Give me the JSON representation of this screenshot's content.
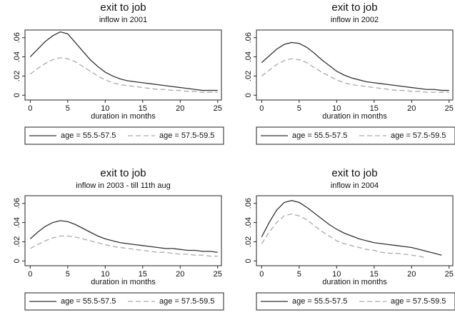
{
  "chart_data": [
    {
      "type": "line",
      "title": "exit to job",
      "subtitle": "inflow in 2001",
      "x_label": "duration in months",
      "x": [
        0,
        1,
        2,
        3,
        4,
        5,
        6,
        7,
        8,
        9,
        10,
        11,
        12,
        13,
        14,
        15,
        16,
        17,
        18,
        19,
        20,
        21,
        22,
        23,
        24,
        25
      ],
      "series": [
        {
          "name": "age = 55.5-57.5",
          "color": "#333333",
          "line_style": "solid",
          "values": [
            0.04,
            0.048,
            0.056,
            0.062,
            0.066,
            0.064,
            0.055,
            0.046,
            0.037,
            0.03,
            0.024,
            0.02,
            0.017,
            0.015,
            0.014,
            0.013,
            0.012,
            0.011,
            0.01,
            0.009,
            0.008,
            0.007,
            0.006,
            0.005,
            0.005,
            0.005
          ]
        },
        {
          "name": "age = 57.5-59.5",
          "color": "#aaaaaa",
          "line_style": "dashed",
          "values": [
            0.022,
            0.028,
            0.033,
            0.037,
            0.039,
            0.038,
            0.035,
            0.03,
            0.025,
            0.02,
            0.016,
            0.013,
            0.011,
            0.01,
            0.009,
            0.008,
            0.007,
            0.006,
            0.006,
            0.005,
            0.005,
            0.004,
            0.004,
            0.003,
            0.003,
            0.003
          ]
        }
      ],
      "xlim": [
        -0.7,
        25.5
      ],
      "xticks": [
        0,
        5,
        10,
        15,
        20,
        25
      ],
      "ylim": [
        -0.005,
        0.068
      ],
      "yticks": [
        0,
        {
          "value": 0.02,
          "label": ".02"
        },
        {
          "value": 0.04,
          "label": ".04"
        },
        {
          "value": 0.06,
          "label": ".06"
        }
      ]
    },
    {
      "type": "line",
      "title": "exit to job",
      "subtitle": "inflow in 2002",
      "x_label": "duration in months",
      "x": [
        0,
        1,
        2,
        3,
        4,
        5,
        6,
        7,
        8,
        9,
        10,
        11,
        12,
        13,
        14,
        15,
        16,
        17,
        18,
        19,
        20,
        21,
        22,
        23,
        24,
        25
      ],
      "series": [
        {
          "name": "age = 55.5-57.5",
          "color": "#333333",
          "line_style": "solid",
          "values": [
            0.034,
            0.041,
            0.048,
            0.053,
            0.055,
            0.054,
            0.05,
            0.044,
            0.037,
            0.031,
            0.025,
            0.021,
            0.018,
            0.016,
            0.014,
            0.013,
            0.012,
            0.011,
            0.01,
            0.009,
            0.008,
            0.007,
            0.006,
            0.006,
            0.005,
            0.005
          ]
        },
        {
          "name": "age = 57.5-59.5",
          "color": "#aaaaaa",
          "line_style": "dashed",
          "values": [
            0.02,
            0.026,
            0.032,
            0.036,
            0.038,
            0.037,
            0.034,
            0.029,
            0.024,
            0.02,
            0.016,
            0.013,
            0.011,
            0.01,
            0.009,
            0.008,
            0.007,
            0.006,
            0.005,
            0.005,
            0.004,
            0.004,
            0.003,
            0.003,
            0.003,
            0.003
          ]
        }
      ],
      "xlim": [
        -0.7,
        25.5
      ],
      "xticks": [
        0,
        5,
        10,
        15,
        20,
        25
      ],
      "ylim": [
        -0.005,
        0.068
      ],
      "yticks": [
        0,
        {
          "value": 0.02,
          "label": ".02"
        },
        {
          "value": 0.04,
          "label": ".04"
        },
        {
          "value": 0.06,
          "label": ".06"
        }
      ]
    },
    {
      "type": "line",
      "title": "exit to job",
      "subtitle": "inflow in 2003 - till 11th aug",
      "x_label": "duration in months",
      "x": [
        0,
        1,
        2,
        3,
        4,
        5,
        6,
        7,
        8,
        9,
        10,
        11,
        12,
        13,
        14,
        15,
        16,
        17,
        18,
        19,
        20,
        21,
        22,
        23,
        24,
        25
      ],
      "series": [
        {
          "name": "age = 55.5-57.5",
          "color": "#333333",
          "line_style": "solid",
          "values": [
            0.023,
            0.03,
            0.036,
            0.04,
            0.042,
            0.041,
            0.038,
            0.034,
            0.03,
            0.026,
            0.023,
            0.021,
            0.019,
            0.018,
            0.017,
            0.016,
            0.015,
            0.014,
            0.013,
            0.013,
            0.012,
            0.011,
            0.011,
            0.01,
            0.01,
            0.009
          ]
        },
        {
          "name": "age = 57.5-59.5",
          "color": "#aaaaaa",
          "line_style": "dashed",
          "values": [
            0.013,
            0.017,
            0.021,
            0.024,
            0.026,
            0.026,
            0.025,
            0.023,
            0.021,
            0.019,
            0.017,
            0.015,
            0.014,
            0.013,
            0.012,
            0.011,
            0.01,
            0.009,
            0.009,
            0.008,
            0.007,
            0.007,
            0.006,
            0.006,
            0.005,
            0.005
          ]
        }
      ],
      "xlim": [
        -0.7,
        25.5
      ],
      "xticks": [
        0,
        5,
        10,
        15,
        20,
        25
      ],
      "ylim": [
        -0.005,
        0.068
      ],
      "yticks": [
        0,
        {
          "value": 0.02,
          "label": ".02"
        },
        {
          "value": 0.04,
          "label": ".04"
        },
        {
          "value": 0.06,
          "label": ".06"
        }
      ]
    },
    {
      "type": "line",
      "title": "exit to job",
      "subtitle": "inflow in 2004",
      "x_label": "duration in months",
      "x": [
        0,
        1,
        2,
        3,
        4,
        5,
        6,
        7,
        8,
        9,
        10,
        11,
        12,
        13,
        14,
        15,
        16,
        17,
        18,
        19,
        20,
        21,
        22,
        23,
        24,
        25
      ],
      "series": [
        {
          "name": "age = 55.5-57.5",
          "color": "#333333",
          "line_style": "solid",
          "values": [
            0.025,
            0.04,
            0.053,
            0.061,
            0.063,
            0.061,
            0.056,
            0.05,
            0.044,
            0.038,
            0.033,
            0.029,
            0.026,
            0.023,
            0.021,
            0.019,
            0.018,
            0.017,
            0.016,
            0.015,
            0.014,
            0.012,
            0.01,
            0.008,
            0.006,
            null
          ]
        },
        {
          "name": "age = 57.5-59.5",
          "color": "#aaaaaa",
          "line_style": "dashed",
          "values": [
            0.018,
            0.03,
            0.04,
            0.047,
            0.049,
            0.047,
            0.043,
            0.037,
            0.031,
            0.026,
            0.021,
            0.018,
            0.016,
            0.014,
            0.012,
            0.011,
            0.009,
            0.008,
            0.008,
            0.007,
            0.006,
            0.005,
            0.003,
            null,
            null,
            null
          ]
        }
      ],
      "xlim": [
        -0.7,
        25.5
      ],
      "xticks": [
        0,
        5,
        10,
        15,
        20,
        25
      ],
      "ylim": [
        -0.005,
        0.068
      ],
      "yticks": [
        0,
        {
          "value": 0.02,
          "label": ".02"
        },
        {
          "value": 0.04,
          "label": ".04"
        },
        {
          "value": 0.06,
          "label": ".06"
        }
      ]
    }
  ]
}
